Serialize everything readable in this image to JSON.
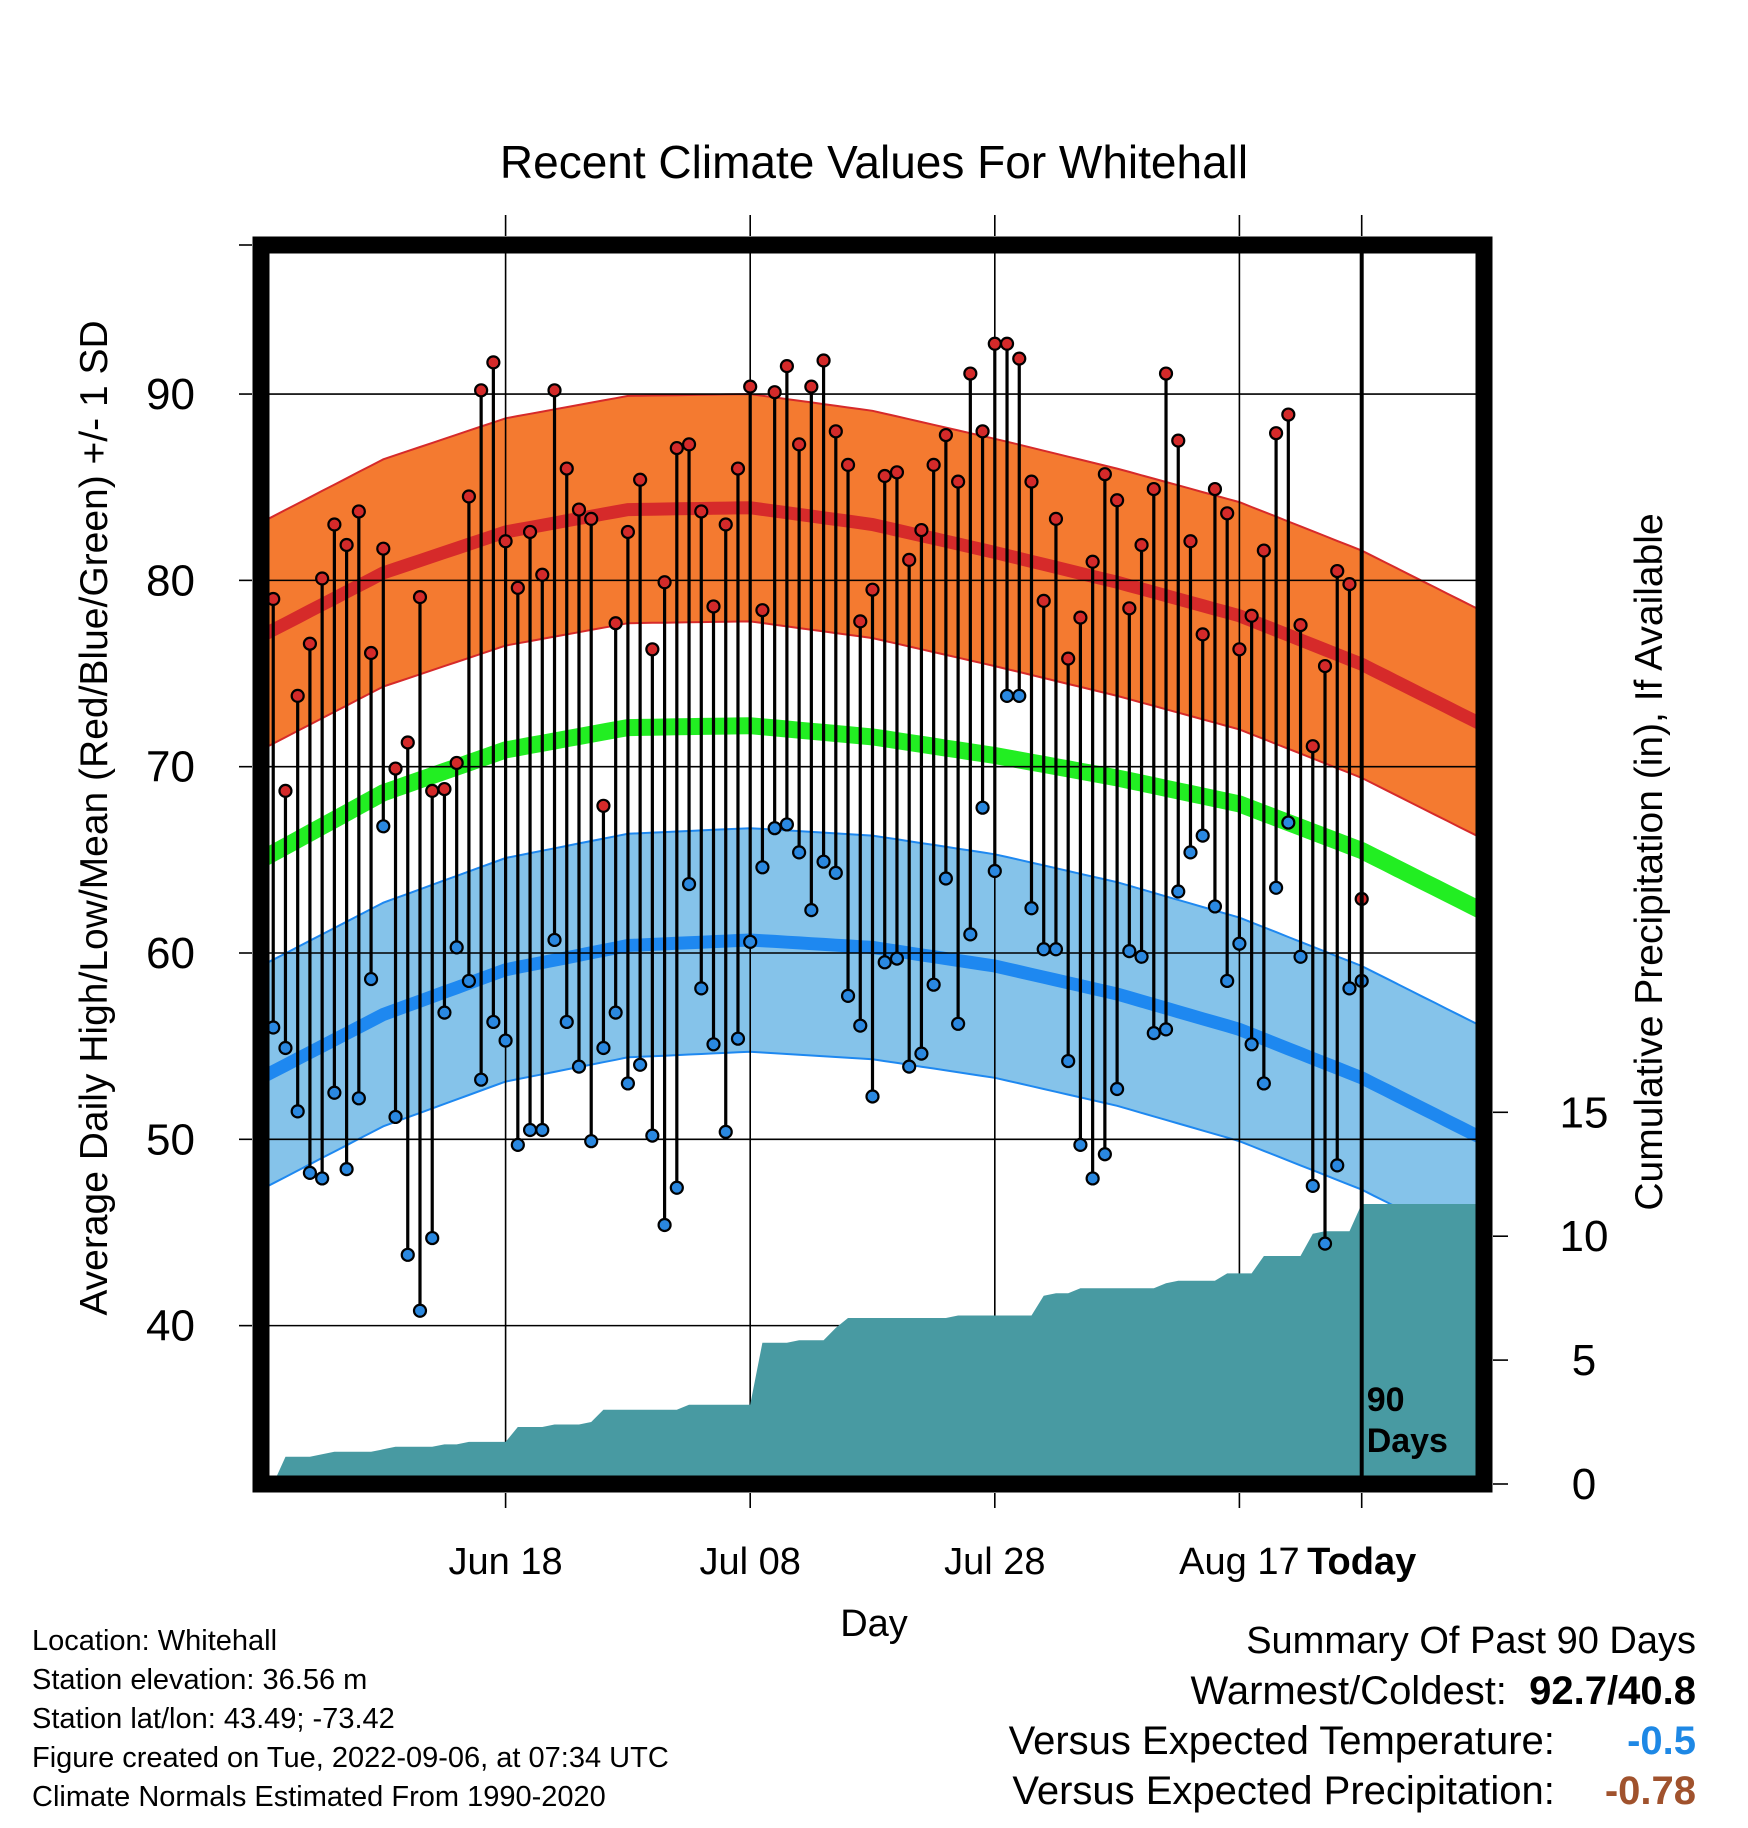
{
  "chart_data": {
    "type": "line",
    "title": "Recent Climate Values For Whitehall",
    "xlabel": "Day",
    "ylabel": "Average Daily High/Low/Mean (Red/Blue/Green) +/- 1 SD",
    "y2label": "Cumulative Precipitation (in), If Available",
    "x_tick_labels": [
      "Jun 18",
      "Jul 08",
      "Jul 28",
      "Aug 17",
      "Today"
    ],
    "y_ticks": [
      40,
      50,
      60,
      70,
      80,
      90
    ],
    "y2_ticks": [
      0,
      5,
      10,
      15
    ],
    "ylim": [
      31.5,
      98
    ],
    "y2lim": [
      0,
      50
    ],
    "day_range": [
      -90,
      10
    ],
    "today_marker_label": [
      "90",
      "Days"
    ],
    "normal_high": {
      "days": [
        -90,
        -80,
        -70,
        -60,
        -50,
        -40,
        -30,
        -20,
        -10,
        0,
        10
      ],
      "mean": [
        77.0,
        80.4,
        82.6,
        83.8,
        83.9,
        83.0,
        81.5,
        79.9,
        78.1,
        75.5,
        72.2
      ],
      "sd": 6.1
    },
    "normal_mean": {
      "days": [
        -90,
        -80,
        -70,
        -60,
        -50,
        -40,
        -30,
        -20,
        -10,
        0,
        10
      ],
      "values": [
        65.0,
        68.6,
        70.9,
        72.1,
        72.2,
        71.6,
        70.6,
        69.4,
        68.0,
        65.5,
        62.2
      ]
    },
    "normal_low": {
      "days": [
        -90,
        -80,
        -70,
        -60,
        -50,
        -40,
        -30,
        -20,
        -10,
        0,
        10
      ],
      "mean": [
        53.3,
        56.7,
        59.1,
        60.4,
        60.7,
        60.3,
        59.3,
        57.8,
        55.9,
        53.3,
        50.0
      ],
      "sd": 6.0
    },
    "daily_highs": [
      79.0,
      68.7,
      73.8,
      76.6,
      80.1,
      83.0,
      81.9,
      83.7,
      76.1,
      81.7,
      69.9,
      71.3,
      79.1,
      68.7,
      68.8,
      70.2,
      84.5,
      90.2,
      91.7,
      82.1,
      79.6,
      82.6,
      80.3,
      90.2,
      86.0,
      83.8,
      83.3,
      67.9,
      77.7,
      82.6,
      85.4,
      76.3,
      79.9,
      87.1,
      87.3,
      83.7,
      78.6,
      83.0,
      86.0,
      90.4,
      78.4,
      90.1,
      91.5,
      87.3,
      90.4,
      91.8,
      88.0,
      86.2,
      77.8,
      79.5,
      85.6,
      85.8,
      81.1,
      82.7,
      86.2,
      87.8,
      85.3,
      91.1,
      88.0,
      92.7,
      92.7,
      91.9,
      85.3,
      78.9,
      83.3,
      75.8,
      78.0,
      81.0,
      85.7,
      84.3,
      78.5,
      81.9,
      84.9,
      91.1,
      87.5,
      82.1,
      77.1,
      84.9,
      83.6,
      76.3,
      78.1,
      81.6,
      87.9,
      88.9,
      77.6,
      71.1,
      75.4,
      80.5,
      79.8,
      62.9
    ],
    "daily_lows": [
      56.0,
      54.9,
      51.5,
      48.2,
      47.9,
      52.5,
      48.4,
      52.2,
      58.6,
      66.8,
      51.2,
      43.8,
      40.8,
      44.7,
      56.8,
      60.3,
      58.5,
      53.2,
      56.3,
      55.3,
      49.7,
      50.5,
      50.5,
      60.7,
      56.3,
      53.9,
      49.9,
      54.9,
      56.8,
      53.0,
      54.0,
      50.2,
      45.4,
      47.4,
      63.7,
      58.1,
      55.1,
      50.4,
      55.4,
      60.6,
      64.6,
      66.7,
      66.9,
      65.4,
      62.3,
      64.9,
      64.3,
      57.7,
      56.1,
      52.3,
      59.5,
      59.7,
      53.9,
      54.6,
      58.3,
      64.0,
      56.2,
      61.0,
      67.8,
      64.4,
      73.8,
      73.8,
      62.4,
      60.2,
      60.2,
      54.2,
      49.7,
      47.9,
      49.2,
      52.7,
      60.1,
      59.8,
      55.7,
      55.9,
      63.3,
      65.4,
      66.3,
      62.5,
      58.5,
      60.5,
      55.1,
      53.0,
      63.5,
      67.0,
      59.8,
      47.5,
      44.4,
      48.6,
      58.1,
      58.5
    ],
    "cumulative_precip": [
      0.0,
      1.1,
      1.1,
      1.1,
      1.2,
      1.3,
      1.3,
      1.3,
      1.3,
      1.4,
      1.5,
      1.5,
      1.5,
      1.5,
      1.6,
      1.6,
      1.7,
      1.7,
      1.7,
      1.7,
      2.3,
      2.3,
      2.3,
      2.4,
      2.4,
      2.4,
      2.5,
      3.0,
      3.0,
      3.0,
      3.0,
      3.0,
      3.0,
      3.0,
      3.2,
      3.2,
      3.2,
      3.2,
      3.2,
      3.2,
      5.7,
      5.7,
      5.7,
      5.8,
      5.8,
      5.8,
      6.3,
      6.7,
      6.7,
      6.7,
      6.7,
      6.7,
      6.7,
      6.7,
      6.7,
      6.7,
      6.8,
      6.8,
      6.8,
      6.8,
      6.8,
      6.8,
      6.8,
      7.6,
      7.7,
      7.7,
      7.9,
      7.9,
      7.9,
      7.9,
      7.9,
      7.9,
      7.9,
      8.1,
      8.2,
      8.2,
      8.2,
      8.2,
      8.5,
      8.5,
      8.5,
      9.2,
      9.2,
      9.2,
      9.2,
      10.1,
      10.2,
      10.2,
      10.2,
      11.3,
      11.3
    ]
  },
  "info": {
    "location": "Location: Whitehall",
    "elevation": "Station elevation: 36.56 m",
    "latlon": "Station lat/lon: 43.49; -73.42",
    "created": "Figure created on Tue, 2022-09-06, at 07:34 UTC",
    "normals": "Climate Normals Estimated From 1990-2020"
  },
  "summary": {
    "title": "Summary Of Past 90 Days",
    "warmest_coldest_label": "Warmest/Coldest:",
    "warmest": "92.7",
    "separator": "/",
    "coldest": "40.8",
    "temp_label": "Versus Expected Temperature:",
    "temp_value": "-0.5",
    "temp_color": "#1e88e5",
    "precip_label": "Versus Expected Precipitation:",
    "precip_value": "-0.78",
    "precip_color": "#a0522d"
  },
  "colors": {
    "high_band": "#f47a30",
    "high_line": "#d62a2a",
    "mean_line": "#22ee22",
    "low_band": "#85c3ea",
    "low_line": "#1e88f0",
    "precip_fill": "#489aa2",
    "high_dot": "#d42a2a",
    "low_dot": "#2a88e0"
  }
}
